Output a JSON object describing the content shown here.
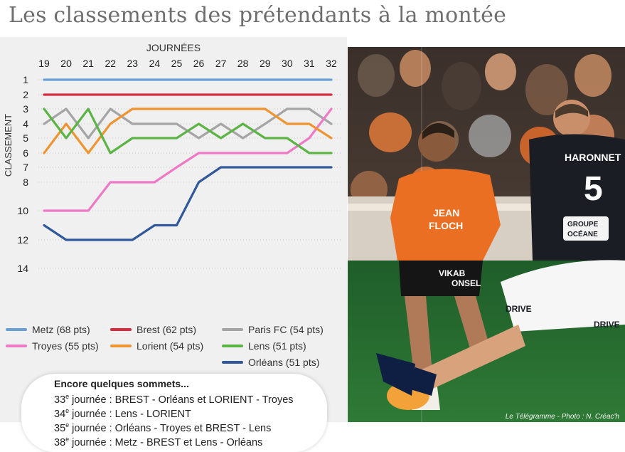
{
  "title": "Les classements des prétendants à la montée",
  "chart_data": {
    "type": "line",
    "title": "Les classements des prétendants à la montée",
    "xlabel": "JOURNÉES",
    "ylabel": "CLASSEMENT",
    "x": [
      19,
      20,
      21,
      22,
      23,
      24,
      25,
      26,
      27,
      28,
      29,
      30,
      31,
      32
    ],
    "y_ticks": [
      1,
      2,
      3,
      4,
      5,
      6,
      7,
      8,
      10,
      12,
      14
    ],
    "ylim": [
      1,
      14
    ],
    "y_inverted": true,
    "grid": true,
    "series": [
      {
        "name": "Metz (68 pts)",
        "color": "#6a9fd6",
        "values": [
          1,
          1,
          1,
          1,
          1,
          1,
          1,
          1,
          1,
          1,
          1,
          1,
          1,
          1
        ]
      },
      {
        "name": "Brest (62 pts)",
        "color": "#d92a3f",
        "values": [
          2,
          2,
          2,
          2,
          2,
          2,
          2,
          2,
          2,
          2,
          2,
          2,
          2,
          2
        ]
      },
      {
        "name": "Paris FC (54 pts)",
        "color": "#a5a5a5",
        "values": [
          4,
          3,
          5,
          3,
          4,
          4,
          4,
          5,
          4,
          5,
          4,
          3,
          3,
          4
        ]
      },
      {
        "name": "Troyes (55 pts)",
        "color": "#ee7ac6",
        "values": [
          10,
          10,
          10,
          8,
          8,
          8,
          7,
          6,
          6,
          6,
          6,
          6,
          5,
          3
        ]
      },
      {
        "name": "Lorient (54 pts)",
        "color": "#ee9432",
        "values": [
          6,
          4,
          6,
          4,
          3,
          3,
          3,
          3,
          3,
          3,
          3,
          4,
          4,
          5
        ]
      },
      {
        "name": "Lens (51 pts)",
        "color": "#5cb346",
        "values": [
          3,
          5,
          3,
          6,
          5,
          5,
          5,
          4,
          5,
          4,
          5,
          5,
          6,
          6
        ]
      },
      {
        "name": "Orléans (51 pts)",
        "color": "#31589a",
        "values": [
          11,
          12,
          12,
          12,
          12,
          11,
          11,
          8,
          7,
          7,
          7,
          7,
          7,
          7
        ]
      }
    ]
  },
  "sommets": {
    "title": "Encore quelques sommets...",
    "rows": [
      {
        "num": "33",
        "sup": "e",
        "text": " journée : BREST - Orléans et LORIENT - Troyes"
      },
      {
        "num": "34",
        "sup": "e",
        "text": " journée : Lens - LORIENT"
      },
      {
        "num": "35",
        "sup": "e",
        "text": " journée : Orléans - Troyes et BREST - Lens"
      },
      {
        "num": "38",
        "sup": "e",
        "text": " journée : Metz - BREST et Lens - Orléans"
      }
    ]
  },
  "photo": {
    "credit": "Le Télégramme - Photo : N. Créac'h",
    "jersey_left_sponsor_1": "JEAN",
    "jersey_left_sponsor_2": "FLOCH",
    "shorts_left": "VIKAB",
    "shorts_left_2": "ONSEL",
    "jersey_right_name": "HARONNET",
    "jersey_right_number": "5",
    "jersey_right_sponsor_1": "GROUPE",
    "jersey_right_sponsor_2": "OCÉANE",
    "shorts_right": "DRIVE",
    "shorts_right_2": "DRIVE"
  }
}
